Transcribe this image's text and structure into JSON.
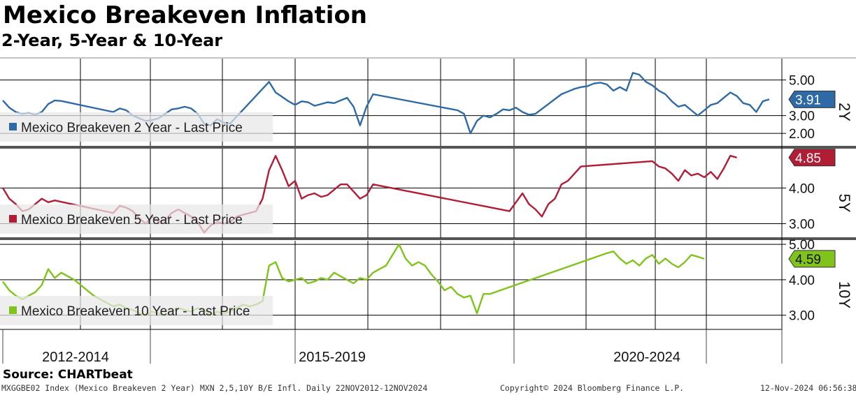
{
  "header": {
    "title": "Mexico Breakeven Inflation",
    "subtitle": "2-Year, 5-Year & 10-Year"
  },
  "footer": {
    "source": "Source: CHARTbeat",
    "ticker": "MXGGBE02 Index (Mexico Breakeven 2 Year) MXN 2,5,10Y B/E Infl.  Daily 22NOV2012-12NOV2024",
    "copyright": "Copyright© 2024 Bloomberg Finance L.P.",
    "timestamp": "12-Nov-2024 06:56:38"
  },
  "colors": {
    "blue": "#2e6aa6",
    "red": "#b21d36",
    "green": "#7fc31c",
    "grid": "#000000"
  },
  "chart_data": [
    {
      "type": "line",
      "panel_tag": "2Y",
      "series": [
        {
          "name": "Mexico Breakeven 2 Year - Last Price",
          "color": "#2e6aa6",
          "last_price": "3.91",
          "values": [
            [
              0,
              3.85
            ],
            [
              1,
              3.45
            ],
            [
              2,
              3.2
            ],
            [
              3,
              3.1
            ],
            [
              4,
              3.15
            ],
            [
              5,
              3.05
            ],
            [
              6,
              3.2
            ],
            [
              7,
              3.65
            ],
            [
              8,
              3.85
            ],
            [
              9,
              3.82
            ],
            [
              17,
              3.2
            ],
            [
              18,
              3.4
            ],
            [
              19,
              3.3
            ],
            [
              20,
              3.0
            ],
            [
              21,
              2.85
            ],
            [
              22,
              2.7
            ],
            [
              23,
              2.75
            ],
            [
              24,
              2.85
            ],
            [
              25,
              3.1
            ],
            [
              26,
              3.35
            ],
            [
              27,
              3.4
            ],
            [
              28,
              3.5
            ],
            [
              29,
              3.4
            ],
            [
              30,
              3.1
            ],
            [
              31,
              2.55
            ],
            [
              32,
              2.45
            ],
            [
              33,
              2.8
            ],
            [
              34,
              2.6
            ],
            [
              35,
              2.55
            ],
            [
              41,
              4.9
            ],
            [
              42,
              4.3
            ],
            [
              43,
              4.05
            ],
            [
              44,
              3.8
            ],
            [
              45,
              3.6
            ],
            [
              46,
              3.8
            ],
            [
              47,
              3.75
            ],
            [
              48,
              3.55
            ],
            [
              49,
              3.65
            ],
            [
              50,
              3.75
            ],
            [
              51,
              3.7
            ],
            [
              52,
              3.85
            ],
            [
              53,
              4.0
            ],
            [
              54,
              3.5
            ],
            [
              55,
              2.45
            ],
            [
              56,
              3.5
            ],
            [
              57,
              4.2
            ],
            [
              70,
              3.3
            ],
            [
              71,
              3.1
            ],
            [
              72,
              2.0
            ],
            [
              73,
              2.7
            ],
            [
              74,
              3.0
            ],
            [
              75,
              2.9
            ],
            [
              76,
              3.1
            ],
            [
              77,
              3.35
            ],
            [
              78,
              3.3
            ],
            [
              79,
              3.45
            ],
            [
              80,
              3.2
            ],
            [
              81,
              3.05
            ],
            [
              82,
              3.1
            ],
            [
              86,
              4.2
            ],
            [
              87,
              4.35
            ],
            [
              88,
              4.5
            ],
            [
              89,
              4.6
            ],
            [
              90,
              4.65
            ],
            [
              91,
              4.8
            ],
            [
              92,
              4.85
            ],
            [
              93,
              4.75
            ],
            [
              94,
              4.4
            ],
            [
              95,
              4.6
            ],
            [
              96,
              4.4
            ],
            [
              97,
              5.4
            ],
            [
              98,
              5.3
            ],
            [
              99,
              4.9
            ],
            [
              100,
              4.7
            ],
            [
              101,
              4.4
            ],
            [
              102,
              4.2
            ],
            [
              103,
              3.8
            ],
            [
              104,
              3.5
            ],
            [
              105,
              3.6
            ],
            [
              106,
              3.3
            ],
            [
              107,
              3.0
            ],
            [
              108,
              3.3
            ],
            [
              109,
              3.6
            ],
            [
              110,
              3.7
            ],
            [
              111,
              4.0
            ],
            [
              112,
              4.3
            ],
            [
              113,
              4.1
            ],
            [
              114,
              3.7
            ],
            [
              115,
              3.6
            ],
            [
              116,
              3.2
            ],
            [
              117,
              3.8
            ],
            [
              118,
              3.91
            ]
          ]
        }
      ],
      "y_ticks": [
        "5.00",
        "3.00",
        "2.00"
      ],
      "ylim": [
        1.3,
        6.2
      ]
    },
    {
      "type": "line",
      "panel_tag": "5Y",
      "series": [
        {
          "name": "Mexico Breakeven 5 Year - Last Price",
          "color": "#b21d36",
          "last_price": "4.85",
          "values": [
            [
              0,
              4.0
            ],
            [
              1,
              3.7
            ],
            [
              2,
              3.55
            ],
            [
              3,
              3.35
            ],
            [
              4,
              3.4
            ],
            [
              5,
              3.55
            ],
            [
              6,
              3.7
            ],
            [
              7,
              3.6
            ],
            [
              8,
              3.65
            ],
            [
              17,
              3.3
            ],
            [
              18,
              3.5
            ],
            [
              19,
              3.45
            ],
            [
              20,
              3.35
            ],
            [
              21,
              3.15
            ],
            [
              22,
              3.0
            ],
            [
              23,
              3.2
            ],
            [
              24,
              3.05
            ],
            [
              25,
              3.1
            ],
            [
              26,
              3.3
            ],
            [
              27,
              3.4
            ],
            [
              28,
              3.3
            ],
            [
              29,
              3.2
            ],
            [
              30,
              3.05
            ],
            [
              31,
              2.75
            ],
            [
              32,
              2.95
            ],
            [
              33,
              3.05
            ],
            [
              34,
              3.0
            ],
            [
              35,
              3.05
            ],
            [
              36,
              3.2
            ],
            [
              37,
              3.25
            ],
            [
              38,
              3.3
            ],
            [
              39,
              3.35
            ],
            [
              40,
              3.7
            ],
            [
              41,
              4.5
            ],
            [
              42,
              4.9
            ],
            [
              43,
              4.5
            ],
            [
              44,
              4.05
            ],
            [
              45,
              4.2
            ],
            [
              46,
              3.7
            ],
            [
              47,
              3.8
            ],
            [
              48,
              3.85
            ],
            [
              49,
              3.75
            ],
            [
              50,
              3.8
            ],
            [
              51,
              3.95
            ],
            [
              52,
              4.1
            ],
            [
              53,
              4.1
            ],
            [
              54,
              3.9
            ],
            [
              55,
              3.7
            ],
            [
              56,
              3.8
            ],
            [
              57,
              4.1
            ],
            [
              78,
              3.35
            ],
            [
              79,
              3.6
            ],
            [
              80,
              3.85
            ],
            [
              81,
              3.55
            ],
            [
              82,
              3.4
            ],
            [
              83,
              3.2
            ],
            [
              84,
              3.55
            ],
            [
              85,
              3.7
            ],
            [
              86,
              4.1
            ],
            [
              87,
              4.2
            ],
            [
              88,
              4.4
            ],
            [
              89,
              4.6
            ],
            [
              100,
              4.75
            ],
            [
              101,
              4.6
            ],
            [
              102,
              4.55
            ],
            [
              103,
              4.4
            ],
            [
              104,
              4.2
            ],
            [
              105,
              4.5
            ],
            [
              106,
              4.35
            ],
            [
              107,
              4.4
            ],
            [
              108,
              4.3
            ],
            [
              109,
              4.45
            ],
            [
              110,
              4.25
            ],
            [
              111,
              4.55
            ],
            [
              112,
              4.9
            ],
            [
              113,
              4.85
            ]
          ]
        }
      ],
      "y_ticks": [
        "4.00",
        "3.00"
      ],
      "ylim": [
        2.6,
        5.1
      ]
    },
    {
      "type": "line",
      "panel_tag": "10Y",
      "series": [
        {
          "name": "Mexico Breakeven 10 Year - Last Price",
          "color": "#7fc31c",
          "last_price": "4.59",
          "values": [
            [
              0,
              3.95
            ],
            [
              1,
              3.7
            ],
            [
              2,
              3.55
            ],
            [
              3,
              3.45
            ],
            [
              4,
              3.55
            ],
            [
              5,
              3.65
            ],
            [
              6,
              3.85
            ],
            [
              7,
              4.3
            ],
            [
              8,
              4.05
            ],
            [
              9,
              4.2
            ],
            [
              10,
              4.1
            ],
            [
              11,
              4.0
            ],
            [
              12,
              3.85
            ],
            [
              13,
              3.7
            ],
            [
              14,
              3.55
            ],
            [
              15,
              3.45
            ],
            [
              16,
              3.35
            ],
            [
              17,
              3.25
            ],
            [
              18,
              3.3
            ],
            [
              19,
              3.2
            ],
            [
              20,
              3.15
            ],
            [
              21,
              3.05
            ],
            [
              22,
              3.0
            ],
            [
              23,
              3.1
            ],
            [
              24,
              3.05
            ],
            [
              25,
              3.0
            ],
            [
              26,
              3.1
            ],
            [
              27,
              3.2
            ],
            [
              28,
              3.15
            ],
            [
              29,
              3.1
            ],
            [
              30,
              3.2
            ],
            [
              31,
              3.15
            ],
            [
              32,
              3.0
            ],
            [
              33,
              3.1
            ],
            [
              34,
              3.05
            ],
            [
              35,
              3.1
            ],
            [
              36,
              3.2
            ],
            [
              37,
              3.3
            ],
            [
              38,
              3.25
            ],
            [
              39,
              3.3
            ],
            [
              40,
              3.4
            ],
            [
              41,
              4.4
            ],
            [
              42,
              4.5
            ],
            [
              43,
              4.05
            ],
            [
              44,
              3.95
            ],
            [
              45,
              4.0
            ],
            [
              46,
              4.05
            ],
            [
              47,
              3.9
            ],
            [
              48,
              3.95
            ],
            [
              49,
              4.05
            ],
            [
              50,
              4.0
            ],
            [
              51,
              4.2
            ],
            [
              52,
              4.1
            ],
            [
              53,
              4.0
            ],
            [
              54,
              3.9
            ],
            [
              55,
              4.05
            ],
            [
              56,
              4.0
            ],
            [
              57,
              4.2
            ],
            [
              58,
              4.3
            ],
            [
              59,
              4.4
            ],
            [
              60,
              4.7
            ],
            [
              61,
              5.0
            ],
            [
              62,
              4.6
            ],
            [
              63,
              4.4
            ],
            [
              64,
              4.5
            ],
            [
              65,
              4.4
            ],
            [
              66,
              4.15
            ],
            [
              67,
              3.95
            ],
            [
              68,
              3.7
            ],
            [
              69,
              3.8
            ],
            [
              70,
              3.6
            ],
            [
              71,
              3.5
            ],
            [
              72,
              3.55
            ],
            [
              73,
              3.05
            ],
            [
              74,
              3.6
            ],
            [
              75,
              3.6
            ],
            [
              93,
              4.75
            ],
            [
              94,
              4.8
            ],
            [
              95,
              4.6
            ],
            [
              96,
              4.45
            ],
            [
              97,
              4.55
            ],
            [
              98,
              4.4
            ],
            [
              99,
              4.6
            ],
            [
              100,
              4.7
            ],
            [
              101,
              4.45
            ],
            [
              102,
              4.6
            ],
            [
              103,
              4.45
            ],
            [
              104,
              4.35
            ],
            [
              105,
              4.5
            ],
            [
              106,
              4.7
            ],
            [
              107,
              4.65
            ],
            [
              108,
              4.59
            ]
          ]
        }
      ],
      "y_ticks": [
        "5.00",
        "4.00",
        "3.00"
      ],
      "ylim": [
        2.6,
        5.1
      ]
    }
  ],
  "x_axis": {
    "labels": [
      "2012-2014",
      "2015-2019",
      "2020-2024"
    ]
  }
}
